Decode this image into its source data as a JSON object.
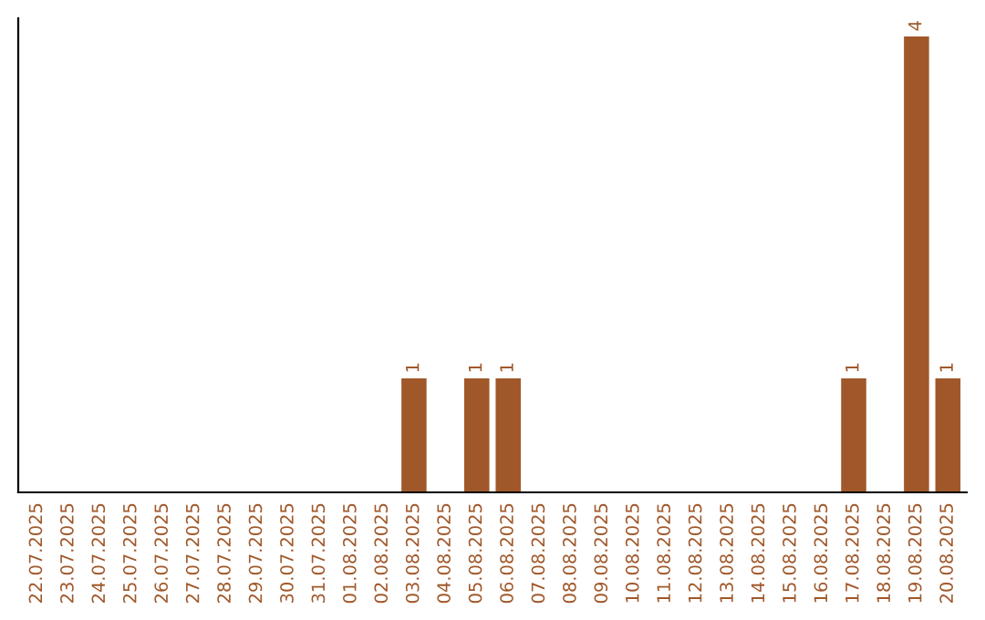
{
  "chart_data": {
    "type": "bar",
    "categories": [
      "22.07.2025",
      "23.07.2025",
      "24.07.2025",
      "25.07.2025",
      "26.07.2025",
      "27.07.2025",
      "28.07.2025",
      "29.07.2025",
      "30.07.2025",
      "31.07.2025",
      "01.08.2025",
      "02.08.2025",
      "03.08.2025",
      "04.08.2025",
      "05.08.2025",
      "06.08.2025",
      "07.08.2025",
      "08.08.2025",
      "09.08.2025",
      "10.08.2025",
      "11.08.2025",
      "12.08.2025",
      "13.08.2025",
      "14.08.2025",
      "15.08.2025",
      "16.08.2025",
      "17.08.2025",
      "18.08.2025",
      "19.08.2025",
      "20.08.2025"
    ],
    "values": [
      null,
      null,
      null,
      null,
      null,
      null,
      null,
      null,
      null,
      null,
      null,
      null,
      1,
      null,
      1,
      1,
      null,
      null,
      null,
      null,
      null,
      null,
      null,
      null,
      null,
      null,
      1,
      null,
      4,
      1
    ],
    "data_labels": true,
    "color": "#a0582a",
    "tick_labels": "x",
    "grid": false,
    "legend": false
  }
}
